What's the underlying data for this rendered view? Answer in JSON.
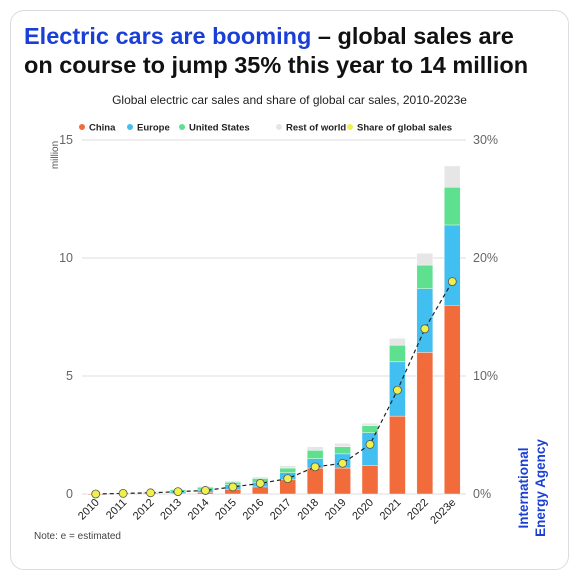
{
  "headline": {
    "accent_text": "Electric cars are booming",
    "rest_text": " – global sales are on course to jump 35% this year to 14 million"
  },
  "colors": {
    "accent": "#1a3fd6",
    "China": "#f26b3a",
    "Europe": "#41bff0",
    "United States": "#5fe08f",
    "Rest of world": "#e6e6e6",
    "Share of global sales": "#f0f04a"
  },
  "note": "Note: e = estimated",
  "watermark": [
    "International",
    "Energy Agency"
  ],
  "chart_data": {
    "type": "bar",
    "stacked": true,
    "title": "Global electric car sales and share of global car sales, 2010-2023e",
    "ylabel": "million",
    "categories": [
      "2010",
      "2011",
      "2012",
      "2013",
      "2014",
      "2015",
      "2016",
      "2017",
      "2018",
      "2019",
      "2020",
      "2021",
      "2022",
      "2023e"
    ],
    "ylim": [
      0,
      15
    ],
    "yticks": [
      0,
      5,
      10,
      15
    ],
    "y2lim": [
      0,
      30
    ],
    "y2ticks": [
      "0%",
      "10%",
      "20%",
      "30%"
    ],
    "legend_position": "top",
    "grid": true,
    "series": [
      {
        "name": "China",
        "values": [
          0.01,
          0.01,
          0.02,
          0.02,
          0.07,
          0.2,
          0.3,
          0.6,
          1.1,
          1.1,
          1.2,
          3.3,
          6.0,
          8.0
        ]
      },
      {
        "name": "Europe",
        "values": [
          0.0,
          0.01,
          0.03,
          0.07,
          0.1,
          0.2,
          0.2,
          0.3,
          0.4,
          0.6,
          1.4,
          2.3,
          2.7,
          3.4
        ]
      },
      {
        "name": "United States",
        "values": [
          0.0,
          0.02,
          0.05,
          0.1,
          0.12,
          0.1,
          0.16,
          0.2,
          0.35,
          0.3,
          0.3,
          0.7,
          1.0,
          1.6
        ]
      },
      {
        "name": "Rest of world",
        "values": [
          0.0,
          0.0,
          0.01,
          0.02,
          0.03,
          0.05,
          0.06,
          0.1,
          0.15,
          0.15,
          0.1,
          0.3,
          0.5,
          0.9
        ]
      }
    ],
    "line_series": {
      "name": "Share of global sales",
      "values": [
        0.0,
        0.05,
        0.1,
        0.2,
        0.3,
        0.6,
        0.9,
        1.3,
        2.3,
        2.6,
        4.2,
        8.8,
        14.0,
        18.0
      ]
    }
  }
}
